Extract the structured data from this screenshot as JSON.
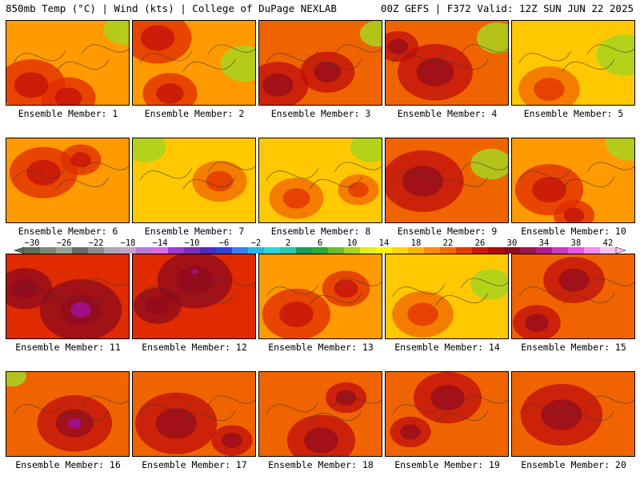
{
  "header": {
    "left": "850mb Temp (°C) | Wind (kts) | College of DuPage NEXLAB",
    "right": "00Z GEFS | F372 Valid: 12Z SUN JUN 22 2025"
  },
  "member_label": "Ensemble Member:",
  "members": [
    {
      "n": "1",
      "temp": 18,
      "hot": [
        [
          0.2,
          0.75,
          0.5
        ],
        [
          0.5,
          0.9,
          0.4
        ]
      ],
      "cool": [
        [
          0.95,
          0.1,
          0.3
        ]
      ],
      "purple": []
    },
    {
      "n": "2",
      "temp": 19,
      "hot": [
        [
          0.2,
          0.2,
          0.5
        ],
        [
          0.3,
          0.85,
          0.4
        ]
      ],
      "cool": [
        [
          0.9,
          0.5,
          0.35
        ]
      ],
      "purple": []
    },
    {
      "n": "3",
      "temp": 20,
      "hot": [
        [
          0.15,
          0.75,
          0.45
        ],
        [
          0.55,
          0.6,
          0.4
        ]
      ],
      "cool": [
        [
          0.95,
          0.15,
          0.25
        ]
      ],
      "purple": []
    },
    {
      "n": "4",
      "temp": 20,
      "hot": [
        [
          0.4,
          0.6,
          0.55
        ],
        [
          0.1,
          0.3,
          0.3
        ]
      ],
      "cool": [
        [
          0.9,
          0.2,
          0.3
        ]
      ],
      "purple": []
    },
    {
      "n": "5",
      "temp": 17,
      "hot": [
        [
          0.3,
          0.8,
          0.45
        ]
      ],
      "cool": [
        [
          0.9,
          0.4,
          0.4
        ]
      ],
      "purple": []
    },
    {
      "n": "6",
      "temp": 19,
      "hot": [
        [
          0.3,
          0.4,
          0.5
        ],
        [
          0.6,
          0.25,
          0.3
        ]
      ],
      "cool": [],
      "purple": []
    },
    {
      "n": "7",
      "temp": 16,
      "hot": [
        [
          0.7,
          0.5,
          0.4
        ]
      ],
      "cool": [
        [
          0.1,
          0.1,
          0.3
        ]
      ],
      "purple": []
    },
    {
      "n": "8",
      "temp": 17,
      "hot": [
        [
          0.3,
          0.7,
          0.4
        ],
        [
          0.8,
          0.6,
          0.3
        ]
      ],
      "cool": [
        [
          0.9,
          0.1,
          0.3
        ]
      ],
      "purple": []
    },
    {
      "n": "9",
      "temp": 21,
      "hot": [
        [
          0.3,
          0.5,
          0.6
        ]
      ],
      "cool": [
        [
          0.85,
          0.3,
          0.3
        ]
      ],
      "purple": []
    },
    {
      "n": "10",
      "temp": 19,
      "hot": [
        [
          0.3,
          0.6,
          0.5
        ],
        [
          0.5,
          0.9,
          0.3
        ]
      ],
      "cool": [
        [
          0.95,
          0.05,
          0.35
        ]
      ],
      "purple": []
    },
    {
      "n": "11",
      "temp": 23,
      "hot": [
        [
          0.6,
          0.65,
          0.6
        ],
        [
          0.15,
          0.4,
          0.4
        ]
      ],
      "cool": [],
      "purple": [
        [
          0.6,
          0.65,
          0.15
        ]
      ]
    },
    {
      "n": "12",
      "temp": 22,
      "hot": [
        [
          0.5,
          0.3,
          0.55
        ],
        [
          0.2,
          0.6,
          0.35
        ]
      ],
      "cool": [],
      "purple": [
        [
          0.5,
          0.2,
          0.05
        ]
      ]
    },
    {
      "n": "13",
      "temp": 19,
      "hot": [
        [
          0.3,
          0.7,
          0.5
        ],
        [
          0.7,
          0.4,
          0.35
        ]
      ],
      "cool": [],
      "purple": []
    },
    {
      "n": "14",
      "temp": 16,
      "hot": [
        [
          0.3,
          0.7,
          0.45
        ]
      ],
      "cool": [
        [
          0.85,
          0.35,
          0.3
        ]
      ],
      "purple": []
    },
    {
      "n": "15",
      "temp": 20,
      "hot": [
        [
          0.5,
          0.3,
          0.45
        ],
        [
          0.2,
          0.8,
          0.35
        ]
      ],
      "cool": [],
      "purple": []
    },
    {
      "n": "16",
      "temp": 21,
      "hot": [
        [
          0.55,
          0.6,
          0.55
        ]
      ],
      "cool": [
        [
          0.05,
          0.05,
          0.2
        ]
      ],
      "purple": [
        [
          0.55,
          0.6,
          0.1
        ]
      ]
    },
    {
      "n": "17",
      "temp": 21,
      "hot": [
        [
          0.35,
          0.6,
          0.6
        ],
        [
          0.8,
          0.8,
          0.3
        ]
      ],
      "cool": [],
      "purple": []
    },
    {
      "n": "18",
      "temp": 20,
      "hot": [
        [
          0.5,
          0.8,
          0.5
        ],
        [
          0.7,
          0.3,
          0.3
        ]
      ],
      "cool": [],
      "purple": []
    },
    {
      "n": "19",
      "temp": 21,
      "hot": [
        [
          0.5,
          0.3,
          0.5
        ],
        [
          0.2,
          0.7,
          0.3
        ]
      ],
      "cool": [],
      "purple": []
    },
    {
      "n": "20",
      "temp": 21,
      "hot": [
        [
          0.4,
          0.5,
          0.6
        ]
      ],
      "cool": [],
      "purple": []
    }
  ],
  "colorbar": {
    "ticks": [
      "−30",
      "−26",
      "−22",
      "−18",
      "−14",
      "−10",
      "−6",
      "−2",
      "2",
      "6",
      "10",
      "14",
      "18",
      "22",
      "26",
      "30",
      "34",
      "38",
      "42"
    ],
    "colors": [
      "#5f6f5f",
      "#7a8a7a",
      "#93a293",
      "#6a6a6a",
      "#8a8a8a",
      "#a9a9b9",
      "#c3a3c9",
      "#b97ad0",
      "#d96be5",
      "#9b3ccf",
      "#7a2fb8",
      "#4b2bbf",
      "#3045d6",
      "#3b7ee6",
      "#23b8e6",
      "#2ed7d6",
      "#2cc7a6",
      "#1a9e5a",
      "#2ea83a",
      "#6dbb2a",
      "#a8d31e",
      "#dff01a",
      "#fff600",
      "#ffd600",
      "#ffb400",
      "#ff8c00",
      "#f26a00",
      "#e23c00",
      "#cc1a00",
      "#b10a0a",
      "#8e0a1e",
      "#99194d",
      "#b01a8a",
      "#c63ac4",
      "#e158e6",
      "#f08ef0",
      "#f6c2f6"
    ]
  }
}
